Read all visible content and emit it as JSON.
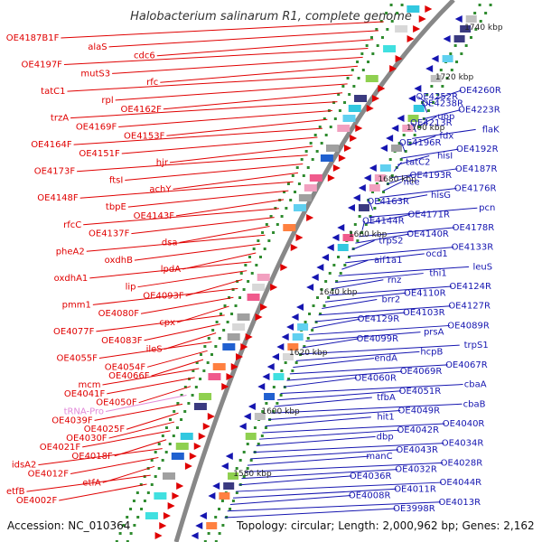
{
  "title": "Halobacterium salinarum R1, complete genome",
  "footer": {
    "accession": "Accession: NC_010364",
    "summary": "Topology: circular; Length: 2,000,962 bp; Genes: 2,162"
  },
  "colors": {
    "forward": "#e00000",
    "reverse": "#1515b0",
    "trna": "#e28ad8",
    "backbone": "#888888",
    "tick": "#2e8b2e"
  },
  "kbp_marks": [
    "1740 kbp",
    "1720 kbp",
    "1700 kbp",
    "1680 kbp",
    "1660 kbp",
    "1640 kbp",
    "1620 kbp",
    "1600 kbp",
    "1580 kbp"
  ],
  "left_labels": [
    "OE4187B1F",
    "alaS",
    "cdc6",
    "OE4197F",
    "mutS3",
    "rfc",
    "tatC1",
    "rpl",
    "OE4162F",
    "trzA",
    "OE4169F",
    "OE4153F",
    "OE4164F",
    "OE4151F",
    "hjr",
    "OE4173F",
    "ftsI",
    "achY",
    "OE4148F",
    "tbpE",
    "OE4143F",
    "rfcC",
    "OE4137F",
    "dsa",
    "pheA2",
    "oxdhB",
    "lpdA",
    "oxdhA1",
    "lip",
    "OE4093F",
    "pmm1",
    "OE4080F",
    "cpx",
    "OE4077F",
    "OE4083F",
    "ileS",
    "OE4055F",
    "OE4054F",
    "OE4066F",
    "mcm",
    "OE4041F",
    "OE4050F",
    "tRNA-Pro",
    "OE4039F",
    "OE4025F",
    "OE4030F",
    "OE4021F",
    "OE4018F",
    "idsA2",
    "OE4012F",
    "etfA",
    "etfB",
    "OE4002F"
  ],
  "right_labels": [
    "OE4260R",
    "OE4252R",
    "OE4238R",
    "OE4223R",
    "upp",
    "OE4213R",
    "flaK",
    "fdx",
    "OE4196R",
    "OE4192R",
    "hisI",
    "tatC2",
    "OE4187R",
    "OE4193R",
    "nce",
    "OE4176R",
    "hisG",
    "OE4163R",
    "pcn",
    "OE4171R",
    "OE4144R",
    "OE4178R",
    "OE4140R",
    "trpS2",
    "OE4133R",
    "ocd1",
    "aif1a1",
    "leuS",
    "thi1",
    "rnz",
    "OE4124R",
    "OE4110R",
    "brr2",
    "OE4127R",
    "OE4103R",
    "OE4129R",
    "OE4089R",
    "prsA",
    "OE4099R",
    "trpS1",
    "hcpB",
    "endA",
    "OE4067R",
    "OE4069R",
    "OE4060R",
    "cbaA",
    "OE4051R",
    "tfbA",
    "cbaB",
    "OE4049R",
    "hit1",
    "OE4040R",
    "OE4042R",
    "dbp",
    "OE4034R",
    "OE4043R",
    "manC",
    "OE4028R",
    "OE4032R",
    "OE4036R",
    "OE4044R",
    "OE4011R",
    "OE4008R",
    "OE4013R",
    "OE3998R"
  ]
}
